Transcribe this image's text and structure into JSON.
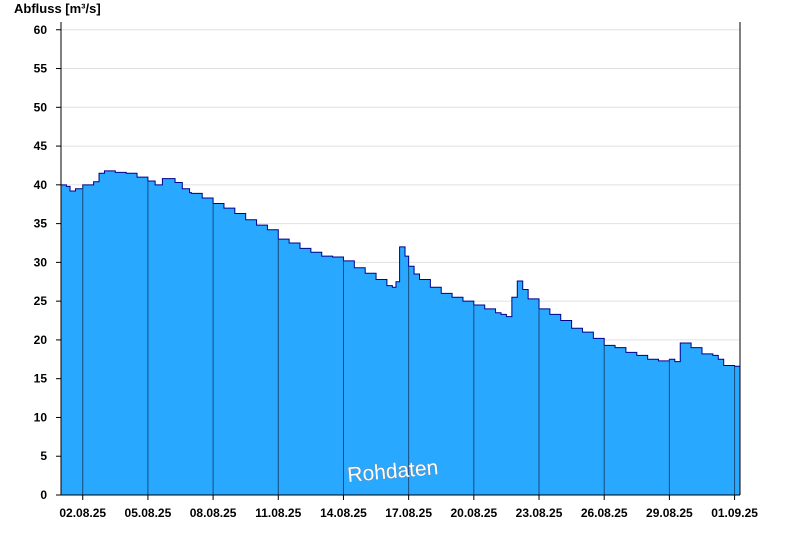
{
  "colors": {
    "area_fill": "#29a8ff",
    "area_outline": "#00008b",
    "grid": "#e0e0e0",
    "day_divider": "#1a4a7a",
    "axis": "#000000",
    "background": "#ffffff"
  },
  "watermark": "Rohdaten",
  "chart_data": {
    "type": "area",
    "ylabel": "Abfluss [m³/s]",
    "xlabel": "",
    "grid": true,
    "ylim": [
      0,
      61
    ],
    "xlim": [
      "2025-08-01",
      "2025-09-01 06:00"
    ],
    "yticks": [
      0,
      5,
      10,
      15,
      20,
      25,
      30,
      35,
      40,
      45,
      50,
      55,
      60
    ],
    "xticks": [
      {
        "date": "2025-08-02",
        "label": "02.08.25"
      },
      {
        "date": "2025-08-05",
        "label": "05.08.25"
      },
      {
        "date": "2025-08-08",
        "label": "08.08.25"
      },
      {
        "date": "2025-08-11",
        "label": "11.08.25"
      },
      {
        "date": "2025-08-14",
        "label": "14.08.25"
      },
      {
        "date": "2025-08-17",
        "label": "17.08.25"
      },
      {
        "date": "2025-08-20",
        "label": "20.08.25"
      },
      {
        "date": "2025-08-23",
        "label": "23.08.25"
      },
      {
        "date": "2025-08-26",
        "label": "26.08.25"
      },
      {
        "date": "2025-08-29",
        "label": "29.08.25"
      },
      {
        "date": "2025-09-01",
        "label": "01.09.25"
      }
    ],
    "series": [
      {
        "x": [
          "2025-08-01 00:00",
          "2025-08-01 06:00",
          "2025-08-01 10:00",
          "2025-08-01 16:00",
          "2025-08-02 00:00",
          "2025-08-02 12:00",
          "2025-08-02 18:00",
          "2025-08-03 00:00",
          "2025-08-03 12:00",
          "2025-08-04 00:00",
          "2025-08-04 12:00",
          "2025-08-05 00:00",
          "2025-08-05 08:00",
          "2025-08-05 16:00",
          "2025-08-05 22:00",
          "2025-08-06 06:00",
          "2025-08-06 14:00",
          "2025-08-06 22:00",
          "2025-08-07 00:00",
          "2025-08-07 12:00",
          "2025-08-08 00:00",
          "2025-08-08 12:00",
          "2025-08-09 00:00",
          "2025-08-09 12:00",
          "2025-08-10 00:00",
          "2025-08-10 12:00",
          "2025-08-11 00:00",
          "2025-08-11 12:00",
          "2025-08-12 00:00",
          "2025-08-12 12:00",
          "2025-08-13 00:00",
          "2025-08-13 12:00",
          "2025-08-14 00:00",
          "2025-08-14 12:00",
          "2025-08-15 00:00",
          "2025-08-15 12:00",
          "2025-08-16 00:00",
          "2025-08-16 06:00",
          "2025-08-16 10:00",
          "2025-08-16 14:00",
          "2025-08-16 20:00",
          "2025-08-17 00:00",
          "2025-08-17 06:00",
          "2025-08-17 12:00",
          "2025-08-18 00:00",
          "2025-08-18 12:00",
          "2025-08-19 00:00",
          "2025-08-19 12:00",
          "2025-08-20 00:00",
          "2025-08-20 12:00",
          "2025-08-21 00:00",
          "2025-08-21 06:00",
          "2025-08-21 12:00",
          "2025-08-21 18:00",
          "2025-08-22 00:00",
          "2025-08-22 06:00",
          "2025-08-22 12:00",
          "2025-08-23 00:00",
          "2025-08-23 12:00",
          "2025-08-24 00:00",
          "2025-08-24 12:00",
          "2025-08-25 00:00",
          "2025-08-25 12:00",
          "2025-08-26 00:00",
          "2025-08-26 12:00",
          "2025-08-27 00:00",
          "2025-08-27 12:00",
          "2025-08-28 00:00",
          "2025-08-28 12:00",
          "2025-08-29 00:00",
          "2025-08-29 06:00",
          "2025-08-29 12:00",
          "2025-08-30 00:00",
          "2025-08-30 12:00",
          "2025-08-31 00:00",
          "2025-08-31 06:00",
          "2025-08-31 12:00",
          "2025-09-01 00:00",
          "2025-09-01 06:00"
        ],
        "values": [
          40.0,
          39.8,
          39.2,
          39.5,
          40.0,
          40.4,
          41.5,
          41.8,
          41.6,
          41.5,
          41.0,
          40.5,
          40.0,
          40.8,
          40.8,
          40.3,
          39.5,
          39.0,
          38.9,
          38.3,
          37.6,
          37.0,
          36.3,
          35.5,
          34.8,
          34.2,
          33.0,
          32.5,
          31.8,
          31.3,
          30.8,
          30.7,
          30.2,
          29.3,
          28.6,
          27.8,
          27.0,
          26.8,
          27.5,
          32.0,
          30.8,
          29.5,
          28.5,
          27.8,
          26.8,
          26.0,
          25.5,
          25.0,
          24.5,
          24.0,
          23.5,
          23.3,
          23.0,
          25.5,
          27.6,
          26.5,
          25.3,
          24.0,
          23.3,
          22.5,
          21.5,
          21.0,
          20.2,
          19.3,
          19.0,
          18.4,
          18.0,
          17.5,
          17.3,
          17.5,
          17.2,
          19.6,
          19.0,
          18.2,
          18.0,
          17.5,
          16.7,
          16.6,
          15.8
        ]
      }
    ]
  }
}
